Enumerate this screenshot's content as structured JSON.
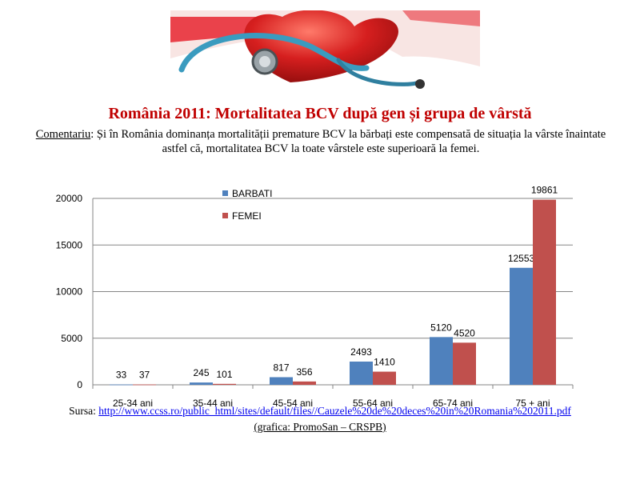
{
  "title": "România 2011: Mortalitatea BCV după gen și grupa de vârstă",
  "comment": {
    "label": "Comentariu",
    "text": ": Și în România dominanța mortalității premature BCV la bărbați este compensată de situația la vârste înaintate astfel că, mortalitatea BCV la toate vârstele este superioară la femei."
  },
  "source": {
    "label": "Sursa:",
    "url_text": "http://www.ccss.ro/public_html/sites/default/files//Cauzele%20de%20deces%20in%20Romania%202011.pdf"
  },
  "credit": "(grafica: PromoSan – CRSPB)",
  "colors": {
    "barbati": "#4f81bd",
    "femei": "#c0504d",
    "title": "#c00000"
  },
  "chart_data": {
    "type": "bar",
    "categories": [
      "25-34 ani",
      "35-44  ani",
      "45-54 ani",
      "55-64 ani",
      "65-74 ani",
      "75 + ani"
    ],
    "series": [
      {
        "name": "BARBATI",
        "values": [
          33,
          245,
          817,
          2493,
          5120,
          12553
        ]
      },
      {
        "name": "FEMEI",
        "values": [
          37,
          101,
          356,
          1410,
          4520,
          19861
        ]
      }
    ],
    "yticks": [
      0,
      5000,
      10000,
      15000,
      20000
    ],
    "ylim": [
      0,
      20000
    ],
    "grid": true,
    "legend": "top-left"
  }
}
